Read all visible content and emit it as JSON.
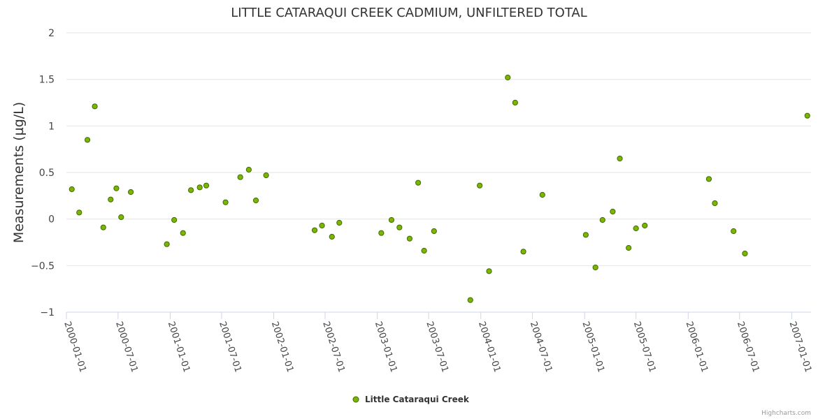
{
  "chart_data": {
    "type": "scatter",
    "title": "LITTLE CATARAQUI CREEK CADMIUM, UNFILTERED TOTAL",
    "xlabel": "",
    "ylabel": "Measurements (µg/L)",
    "ylim": [
      -1,
      2
    ],
    "yticks": [
      2,
      1.5,
      1,
      0.5,
      0,
      -0.5,
      -1
    ],
    "ytick_labels": [
      "2",
      "1.5",
      "1",
      "0.5",
      "0",
      "−0.5",
      "−1"
    ],
    "xlim": [
      "2000-01-01",
      "2007-03-10"
    ],
    "xticks": [
      "2000-01-01",
      "2000-07-01",
      "2001-01-01",
      "2001-07-01",
      "2002-01-01",
      "2002-07-01",
      "2003-01-01",
      "2003-07-01",
      "2004-01-01",
      "2004-07-01",
      "2005-01-01",
      "2005-07-01",
      "2006-01-01",
      "2006-07-01",
      "2007-01-01"
    ],
    "grid": true,
    "legend_position": "bottom-center",
    "credits": "Highcharts.com",
    "series": [
      {
        "name": "Little Cataraqui Creek",
        "color": "#7cb500",
        "border_color": "#3f6b00",
        "points": [
          {
            "x": "2000-01-20",
            "y": 0.32
          },
          {
            "x": "2000-02-15",
            "y": 0.07
          },
          {
            "x": "2000-03-15",
            "y": 0.85
          },
          {
            "x": "2000-04-10",
            "y": 1.21
          },
          {
            "x": "2000-05-10",
            "y": -0.09
          },
          {
            "x": "2000-06-05",
            "y": 0.21
          },
          {
            "x": "2000-06-25",
            "y": 0.33
          },
          {
            "x": "2000-07-12",
            "y": 0.02
          },
          {
            "x": "2000-08-15",
            "y": 0.29
          },
          {
            "x": "2000-12-20",
            "y": -0.27
          },
          {
            "x": "2001-01-15",
            "y": -0.01
          },
          {
            "x": "2001-02-15",
            "y": -0.15
          },
          {
            "x": "2001-03-15",
            "y": 0.31
          },
          {
            "x": "2001-04-15",
            "y": 0.34
          },
          {
            "x": "2001-05-08",
            "y": 0.36
          },
          {
            "x": "2001-07-15",
            "y": 0.18
          },
          {
            "x": "2001-09-05",
            "y": 0.45
          },
          {
            "x": "2001-10-05",
            "y": 0.53
          },
          {
            "x": "2001-10-30",
            "y": 0.2
          },
          {
            "x": "2001-12-05",
            "y": 0.47
          },
          {
            "x": "2002-05-25",
            "y": -0.12
          },
          {
            "x": "2002-06-20",
            "y": -0.07
          },
          {
            "x": "2002-07-25",
            "y": -0.19
          },
          {
            "x": "2002-08-20",
            "y": -0.04
          },
          {
            "x": "2003-01-15",
            "y": -0.15
          },
          {
            "x": "2003-02-20",
            "y": -0.01
          },
          {
            "x": "2003-03-20",
            "y": -0.09
          },
          {
            "x": "2003-04-25",
            "y": -0.21
          },
          {
            "x": "2003-05-25",
            "y": 0.39
          },
          {
            "x": "2003-06-15",
            "y": -0.34
          },
          {
            "x": "2003-07-20",
            "y": -0.13
          },
          {
            "x": "2003-11-25",
            "y": -0.87
          },
          {
            "x": "2003-12-28",
            "y": 0.36
          },
          {
            "x": "2004-01-30",
            "y": -0.56
          },
          {
            "x": "2004-04-05",
            "y": 1.52
          },
          {
            "x": "2004-05-01",
            "y": 1.25
          },
          {
            "x": "2004-05-30",
            "y": -0.35
          },
          {
            "x": "2004-08-05",
            "y": 0.26
          },
          {
            "x": "2005-01-05",
            "y": -0.17
          },
          {
            "x": "2005-02-08",
            "y": -0.52
          },
          {
            "x": "2005-03-05",
            "y": -0.01
          },
          {
            "x": "2005-04-10",
            "y": 0.08
          },
          {
            "x": "2005-05-05",
            "y": 0.65
          },
          {
            "x": "2005-06-05",
            "y": -0.31
          },
          {
            "x": "2005-07-01",
            "y": -0.1
          },
          {
            "x": "2005-08-01",
            "y": -0.07
          },
          {
            "x": "2006-03-15",
            "y": 0.43
          },
          {
            "x": "2006-04-05",
            "y": 0.17
          },
          {
            "x": "2006-06-10",
            "y": -0.13
          },
          {
            "x": "2006-07-20",
            "y": -0.37
          },
          {
            "x": "2007-02-25",
            "y": 1.11
          }
        ]
      }
    ]
  }
}
